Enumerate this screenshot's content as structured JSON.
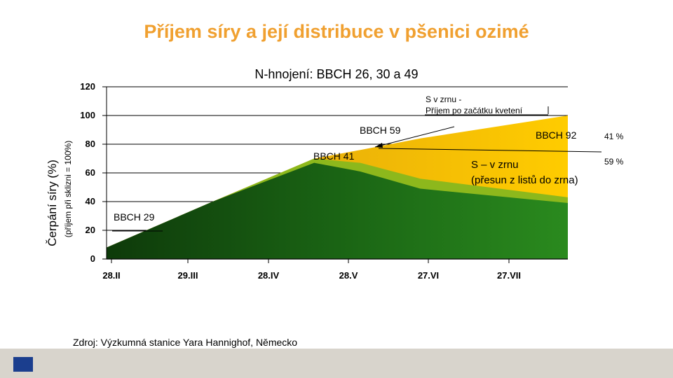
{
  "title": "Příjem síry a její distribuce v pšenici ozimé",
  "source": "Zdroj: Výzkumná  stanice Yara Hannighof,  Německo",
  "chart_data": {
    "type": "area",
    "title": "N-hnojení:  BBCH 26, 30 a 49",
    "ylabel": "Čerpání  síry (%)",
    "ylabel_sub": "(příjem při sklizni = 100%)",
    "ylim": [
      0,
      120
    ],
    "yticks": [
      0,
      20,
      40,
      60,
      80,
      100,
      120
    ],
    "xticks": [
      "28.II",
      "29.III",
      "28.IV",
      "28.V",
      "27.VI",
      "27.VII"
    ],
    "x": [
      0,
      0.23,
      0.45,
      0.55,
      0.68,
      1.0
    ],
    "series": [
      {
        "values": [
          8,
          40,
          67,
          61,
          49,
          39
        ],
        "color": "#1f7a18"
      },
      {
        "values": [
          8,
          40,
          70,
          67,
          56,
          43
        ],
        "color": "#8db81c"
      },
      {
        "values": [
          8,
          40,
          70,
          76,
          84,
          100
        ],
        "color": "#f2b400"
      }
    ],
    "annotations": [
      {
        "text": "BBCH 29"
      },
      {
        "text": "BBCH 41"
      },
      {
        "text": "BBCH 59"
      },
      {
        "text": "BBCH 92"
      },
      {
        "text": "S v zrnu -"
      },
      {
        "text": "Příjem po začátku kvetení"
      },
      {
        "text": "S – v zrnu"
      },
      {
        "text": "(přesun z listů do zrna)"
      },
      {
        "text": "41 %"
      },
      {
        "text": "59 %"
      }
    ]
  }
}
